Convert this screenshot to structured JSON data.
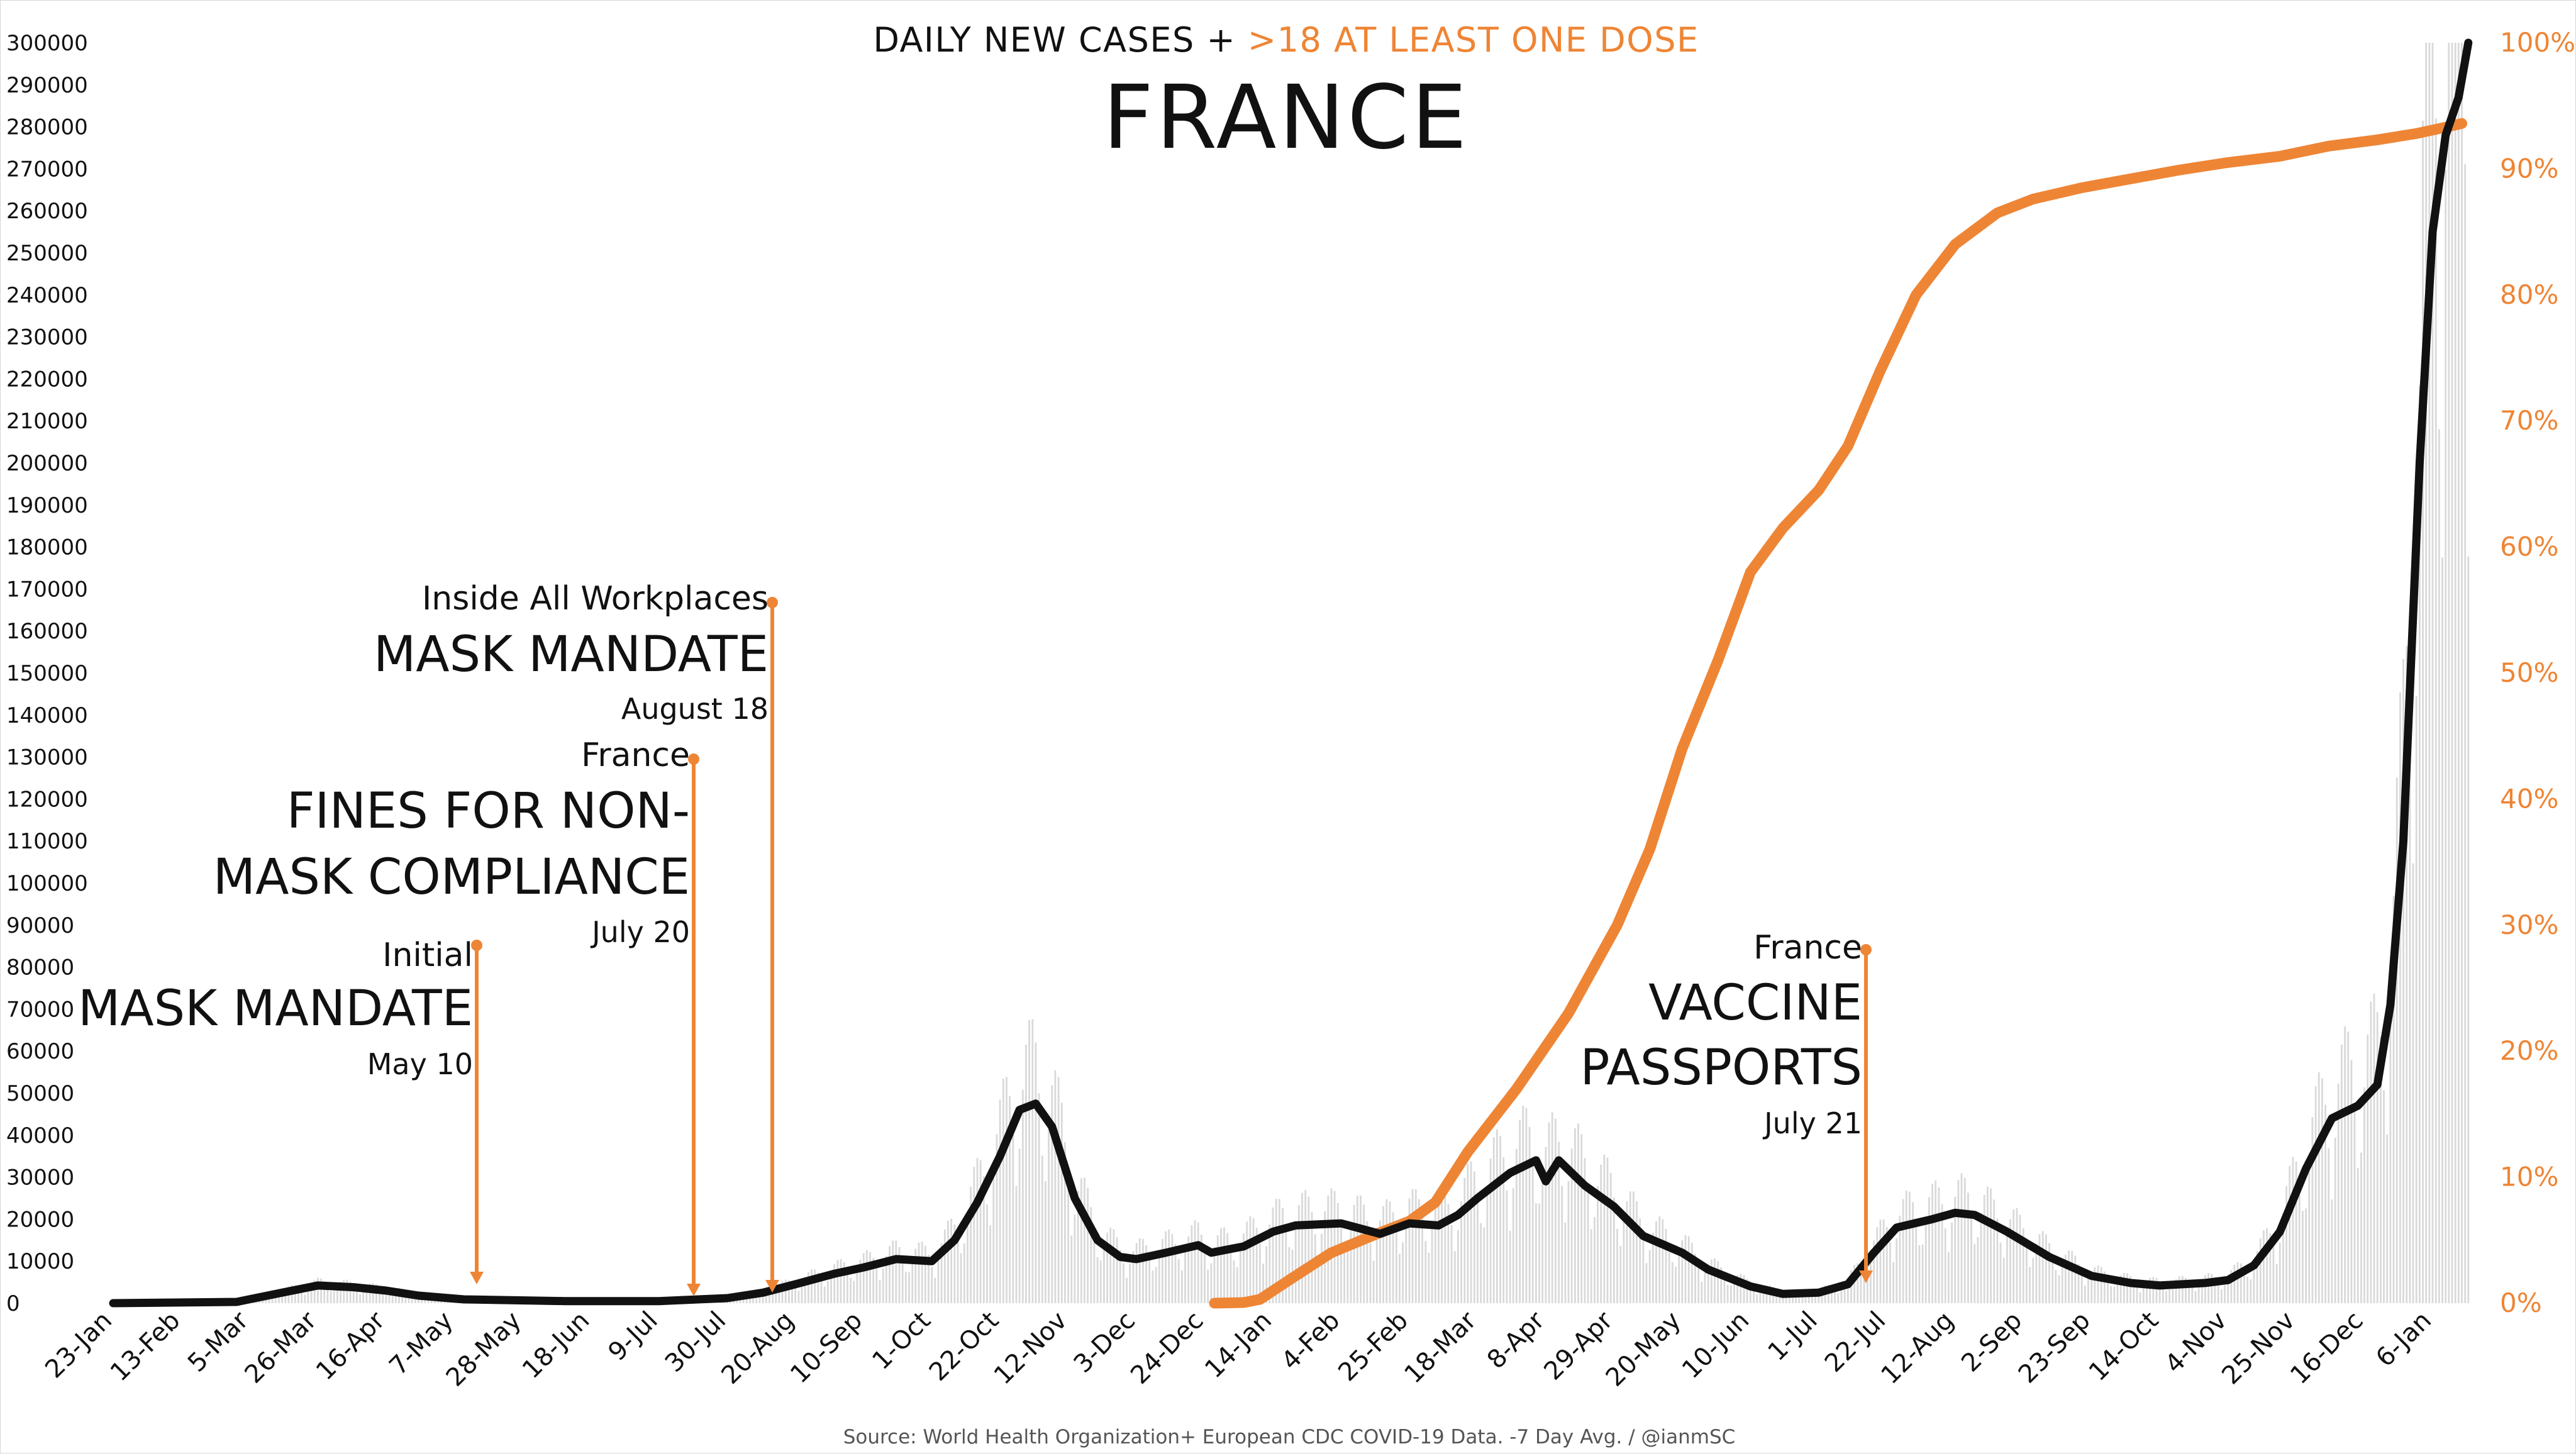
{
  "header": {
    "subtitle_prefix": "DAILY NEW CASES +",
    "subtitle_highlight": ">18 AT LEAST ONE DOSE",
    "title": "FRANCE"
  },
  "source": "Source: World Health Organization+ European CDC COVID-19 Data. -7 Day Avg. / @ianmSC",
  "colors": {
    "cases": "#111111",
    "vaccine": "#ee8535",
    "annotation": "#ee8535",
    "daily_bars": "#d9d9d9",
    "text": "#111111",
    "right_axis_text": "#ee8535"
  },
  "annotations": [
    {
      "top": "Initial",
      "main": [
        "MASK MANDATE"
      ],
      "date": "May 10"
    },
    {
      "top": "France",
      "main": [
        "FINES FOR NON-",
        "MASK COMPLIANCE"
      ],
      "date": "July 20"
    },
    {
      "top": "Inside All Workplaces",
      "main": [
        "MASK MANDATE"
      ],
      "date": "August 18"
    },
    {
      "top": "France",
      "main": [
        "VACCINE",
        "PASSPORTS"
      ],
      "date": "July 21"
    }
  ],
  "chart_data": {
    "type": "line",
    "x_start": "2020-01-23",
    "x_end": "2022-01-18",
    "x_tick_labels": [
      "23-Jan",
      "13-Feb",
      "5-Mar",
      "26-Mar",
      "16-Apr",
      "7-May",
      "28-May",
      "18-Jun",
      "9-Jul",
      "30-Jul",
      "20-Aug",
      "10-Sep",
      "1-Oct",
      "22-Oct",
      "12-Nov",
      "3-Dec",
      "24-Dec",
      "14-Jan",
      "4-Feb",
      "25-Feb",
      "18-Mar",
      "8-Apr",
      "29-Apr",
      "20-May",
      "10-Jun",
      "1-Jul",
      "22-Jul",
      "12-Aug",
      "2-Sep",
      "23-Sep",
      "14-Oct",
      "4-Nov",
      "25-Nov",
      "16-Dec",
      "6-Jan"
    ],
    "y_left": {
      "min": 0,
      "max": 300000,
      "tick_labels": [
        "0",
        "10000",
        "20000",
        "30000",
        "40000",
        "50000",
        "60000",
        "70000",
        "80000",
        "90000",
        "100000",
        "110000",
        "120000",
        "130000",
        "140000",
        "150000",
        "160000",
        "170000",
        "180000",
        "190000",
        "200000",
        "210000",
        "220000",
        "230000",
        "240000",
        "250000",
        "260000",
        "270000",
        "280000",
        "290000",
        "300000"
      ]
    },
    "y_right": {
      "min": 0,
      "max": 100,
      "tick_labels": [
        "0%",
        "10%",
        "20%",
        "30%",
        "40%",
        "50%",
        "60%",
        "70%",
        "80%",
        "90%",
        "100%"
      ]
    },
    "grid": false,
    "legend": "none",
    "series": [
      {
        "name": "DAILY NEW CASES",
        "axis": "left",
        "points": [
          [
            "2020-01-23",
            0
          ],
          [
            "2020-03-01",
            300
          ],
          [
            "2020-03-15",
            2500
          ],
          [
            "2020-03-26",
            4200
          ],
          [
            "2020-04-06",
            3800
          ],
          [
            "2020-04-16",
            3000
          ],
          [
            "2020-04-26",
            1800
          ],
          [
            "2020-05-10",
            900
          ],
          [
            "2020-06-10",
            500
          ],
          [
            "2020-07-09",
            500
          ],
          [
            "2020-07-30",
            1200
          ],
          [
            "2020-08-10",
            2500
          ],
          [
            "2020-08-20",
            4500
          ],
          [
            "2020-09-01",
            7000
          ],
          [
            "2020-09-10",
            8500
          ],
          [
            "2020-09-20",
            10500
          ],
          [
            "2020-10-01",
            10000
          ],
          [
            "2020-10-08",
            15000
          ],
          [
            "2020-10-15",
            24000
          ],
          [
            "2020-10-22",
            35000
          ],
          [
            "2020-10-28",
            46000
          ],
          [
            "2020-11-02",
            47500
          ],
          [
            "2020-11-07",
            42000
          ],
          [
            "2020-11-14",
            25000
          ],
          [
            "2020-11-21",
            15000
          ],
          [
            "2020-11-28",
            11000
          ],
          [
            "2020-12-03",
            10500
          ],
          [
            "2020-12-12",
            12000
          ],
          [
            "2020-12-22",
            13800
          ],
          [
            "2020-12-26",
            12000
          ],
          [
            "2021-01-05",
            13500
          ],
          [
            "2021-01-14",
            17000
          ],
          [
            "2021-01-21",
            18500
          ],
          [
            "2021-02-04",
            19000
          ],
          [
            "2021-02-16",
            16500
          ],
          [
            "2021-02-25",
            19000
          ],
          [
            "2021-03-06",
            18500
          ],
          [
            "2021-03-12",
            21000
          ],
          [
            "2021-03-18",
            25000
          ],
          [
            "2021-03-28",
            31000
          ],
          [
            "2021-04-05",
            34000
          ],
          [
            "2021-04-08",
            29000
          ],
          [
            "2021-04-12",
            34000
          ],
          [
            "2021-04-20",
            28000
          ],
          [
            "2021-04-29",
            23000
          ],
          [
            "2021-05-08",
            16000
          ],
          [
            "2021-05-20",
            12000
          ],
          [
            "2021-05-28",
            8000
          ],
          [
            "2021-06-10",
            4000
          ],
          [
            "2021-06-20",
            2200
          ],
          [
            "2021-07-01",
            2500
          ],
          [
            "2021-07-10",
            4500
          ],
          [
            "2021-07-18",
            12000
          ],
          [
            "2021-07-25",
            18000
          ],
          [
            "2021-08-05",
            20000
          ],
          [
            "2021-08-12",
            21500
          ],
          [
            "2021-08-18",
            21000
          ],
          [
            "2021-08-28",
            17000
          ],
          [
            "2021-09-10",
            11000
          ],
          [
            "2021-09-23",
            6500
          ],
          [
            "2021-10-05",
            4800
          ],
          [
            "2021-10-14",
            4200
          ],
          [
            "2021-10-28",
            4800
          ],
          [
            "2021-11-04",
            5500
          ],
          [
            "2021-11-12",
            9000
          ],
          [
            "2021-11-20",
            17000
          ],
          [
            "2021-11-28",
            32000
          ],
          [
            "2021-12-06",
            44000
          ],
          [
            "2021-12-14",
            47000
          ],
          [
            "2021-12-20",
            52000
          ],
          [
            "2021-12-24",
            71000
          ],
          [
            "2021-12-28",
            110000
          ],
          [
            "2022-01-02",
            200000
          ],
          [
            "2022-01-06",
            255000
          ],
          [
            "2022-01-10",
            278000
          ],
          [
            "2022-01-14",
            287000
          ],
          [
            "2022-01-17",
            300000
          ]
        ]
      },
      {
        "name": ">18 AT LEAST ONE DOSE",
        "axis": "right",
        "points": [
          [
            "2020-12-27",
            0
          ],
          [
            "2021-01-05",
            0.05
          ],
          [
            "2021-01-10",
            0.3
          ],
          [
            "2021-01-20",
            2
          ],
          [
            "2021-02-01",
            4
          ],
          [
            "2021-02-15",
            5.5
          ],
          [
            "2021-02-25",
            6.5
          ],
          [
            "2021-03-05",
            8
          ],
          [
            "2021-03-15",
            12
          ],
          [
            "2021-03-30",
            17
          ],
          [
            "2021-04-15",
            23
          ],
          [
            "2021-04-30",
            30
          ],
          [
            "2021-05-10",
            36
          ],
          [
            "2021-05-20",
            44
          ],
          [
            "2021-05-31",
            51
          ],
          [
            "2021-06-10",
            58
          ],
          [
            "2021-06-20",
            61.5
          ],
          [
            "2021-07-01",
            64.5
          ],
          [
            "2021-07-10",
            68
          ],
          [
            "2021-07-20",
            74
          ],
          [
            "2021-07-31",
            80
          ],
          [
            "2021-08-12",
            84
          ],
          [
            "2021-08-25",
            86.5
          ],
          [
            "2021-09-05",
            87.6
          ],
          [
            "2021-09-20",
            88.5
          ],
          [
            "2021-10-05",
            89.2
          ],
          [
            "2021-10-20",
            89.9
          ],
          [
            "2021-11-04",
            90.5
          ],
          [
            "2021-11-20",
            91
          ],
          [
            "2021-12-05",
            91.8
          ],
          [
            "2021-12-20",
            92.3
          ],
          [
            "2022-01-01",
            92.8
          ],
          [
            "2022-01-10",
            93.3
          ],
          [
            "2022-01-15",
            93.6
          ]
        ]
      }
    ]
  }
}
